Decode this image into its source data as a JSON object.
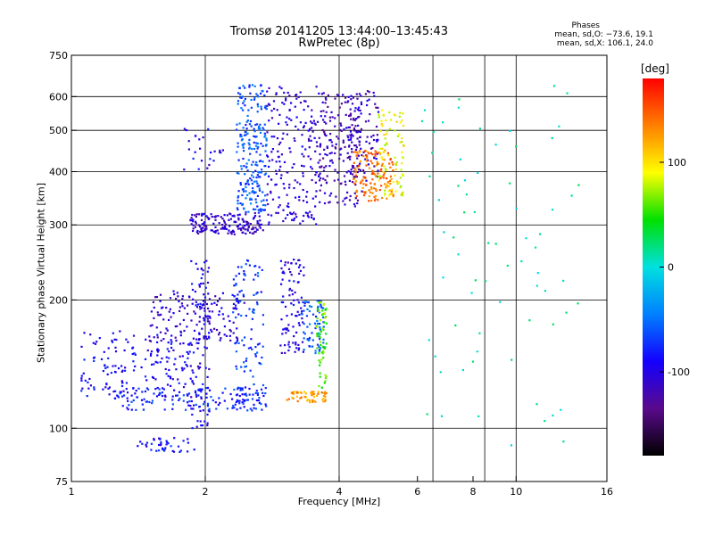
{
  "header": {
    "title": "Tromsø 20141205 13:44:00–13:45:43",
    "subtitle": "RwPretec (8p)"
  },
  "phase_info": {
    "label": "Phases",
    "line_o": "mean, sd,O: −73.6, 19.1",
    "line_x": "mean, sd,X: 106.1, 24.0"
  },
  "colors": {
    "background": "#ffffff",
    "grid": "#000000",
    "colormap": [
      "#000000",
      "#5a0a8c",
      "#1400ff",
      "#0080ff",
      "#00e0e0",
      "#00e000",
      "#ffff00",
      "#ff8000",
      "#ff0000"
    ]
  },
  "chart_data": {
    "type": "scatter",
    "title": "Tromsø 20141205 13:44:00–13:45:43",
    "subtitle": "RwPretec (8p)",
    "xlabel": "Frequency [MHz]",
    "ylabel": "Stationary phase Virtual Height [km]",
    "x_scale": "log",
    "y_scale": "log",
    "xlim": [
      1,
      16
    ],
    "ylim": [
      75,
      750
    ],
    "x_ticks": [
      1,
      2,
      4,
      6,
      8,
      10,
      16
    ],
    "y_ticks": [
      75,
      100,
      200,
      300,
      400,
      500,
      600,
      750
    ],
    "x_grid": [
      2,
      4,
      6.5,
      8.5,
      10,
      16
    ],
    "y_grid": [
      100,
      200,
      300,
      400,
      500,
      600
    ],
    "grid": true,
    "colorbar": {
      "label": "[deg]",
      "ticks": [
        100,
        0,
        -100
      ],
      "range": [
        -180,
        180
      ]
    },
    "series": [
      {
        "x_start": 1.05,
        "x_end": 1.85,
        "y_start": 118,
        "y_end": 170,
        "phase": -92,
        "points": 170
      },
      {
        "x_start": 1.5,
        "x_end": 2.45,
        "y_start": 160,
        "y_end": 210,
        "phase": -108,
        "points": 130
      },
      {
        "x_start": 1.25,
        "x_end": 2.8,
        "y_start": 110,
        "y_end": 125,
        "phase": -78,
        "points": 140
      },
      {
        "x_start": 2.3,
        "x_end": 2.7,
        "y_start": 110,
        "y_end": 250,
        "phase": -70,
        "points": 110
      },
      {
        "x_start": 1.85,
        "x_end": 2.05,
        "y_start": 100,
        "y_end": 250,
        "phase": -95,
        "points": 110
      },
      {
        "x_start": 2.95,
        "x_end": 3.35,
        "y_start": 150,
        "y_end": 250,
        "phase": -100,
        "points": 90
      },
      {
        "x_start": 3.3,
        "x_end": 3.7,
        "y_start": 150,
        "y_end": 200,
        "phase": -60,
        "points": 70
      },
      {
        "x_start": 3.55,
        "x_end": 3.75,
        "y_start": 120,
        "y_end": 200,
        "phase": 60,
        "points": 60
      },
      {
        "x_start": 3.05,
        "x_end": 3.75,
        "y_start": 115,
        "y_end": 122,
        "phase": 125,
        "points": 55
      },
      {
        "x_start": 1.4,
        "x_end": 1.9,
        "y_start": 88,
        "y_end": 95,
        "phase": -85,
        "points": 40
      },
      {
        "x_start": 1.85,
        "x_end": 2.7,
        "y_start": 285,
        "y_end": 320,
        "phase": -110,
        "points": 160
      },
      {
        "x_start": 2.35,
        "x_end": 2.75,
        "y_start": 320,
        "y_end": 640,
        "phase": -62,
        "points": 230
      },
      {
        "x_start": 2.75,
        "x_end": 3.6,
        "y_start": 300,
        "y_end": 640,
        "phase": -105,
        "points": 200
      },
      {
        "x_start": 3.6,
        "x_end": 4.5,
        "y_start": 330,
        "y_end": 620,
        "phase": -118,
        "points": 180
      },
      {
        "x_start": 4.2,
        "x_end": 4.9,
        "y_start": 380,
        "y_end": 620,
        "phase": -112,
        "points": 100
      },
      {
        "x_start": 4.3,
        "x_end": 5.3,
        "y_start": 340,
        "y_end": 450,
        "phase": 140,
        "points": 130
      },
      {
        "x_start": 4.9,
        "x_end": 5.6,
        "y_start": 350,
        "y_end": 560,
        "phase": 90,
        "points": 90
      },
      {
        "x_start": 1.75,
        "x_end": 2.2,
        "y_start": 390,
        "y_end": 510,
        "phase": -95,
        "points": 25
      },
      {
        "x_start": 6.0,
        "x_end": 14.0,
        "y_start": 90,
        "y_end": 650,
        "phase": 10,
        "points": 70
      }
    ]
  }
}
